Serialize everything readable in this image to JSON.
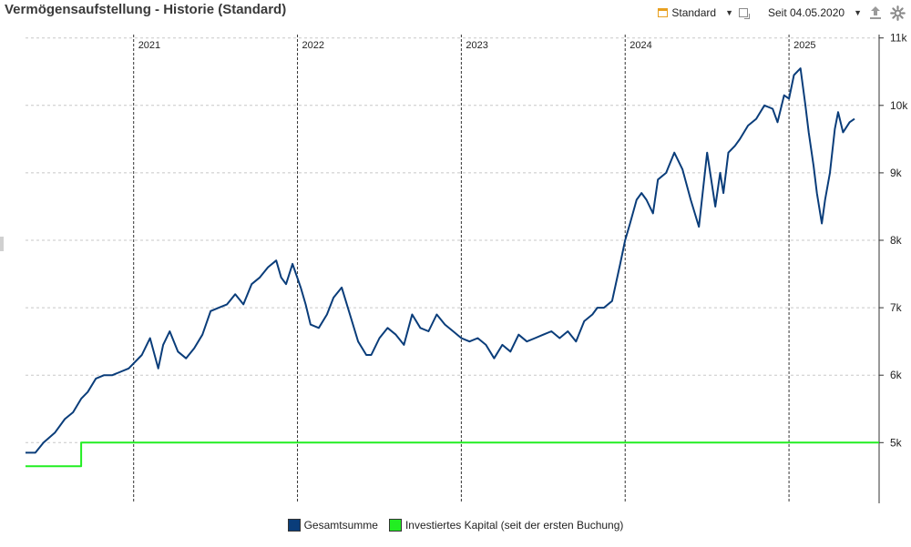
{
  "header": {
    "title": "Vermögensaufstellung - Historie (Standard)",
    "standard_label": "Standard",
    "range_label": "Seit 04.05.2020",
    "calendar_icon": "calendar-icon",
    "range_icon": "date-range-icon",
    "export_icon": "export-icon",
    "settings_icon": "gear-icon"
  },
  "legend": {
    "items": [
      {
        "label": "Gesamtsumme",
        "color": "#0a3d7a"
      },
      {
        "label": "Investiertes Kapital (seit der ersten Buchung)",
        "color": "#22ee22"
      }
    ]
  },
  "chart_data": {
    "type": "line",
    "title": "Vermögensaufstellung - Historie (Standard)",
    "xlim": [
      2020.34,
      2025.55
    ],
    "ylim": [
      4100,
      11050
    ],
    "y_ticks": [
      5000,
      6000,
      7000,
      8000,
      9000,
      10000,
      11000
    ],
    "y_tick_labels": [
      "5k",
      "6k",
      "7k",
      "8k",
      "9k",
      "10k",
      "11k"
    ],
    "x_year_markers": [
      {
        "x": 2021.0,
        "label": "2021"
      },
      {
        "x": 2022.0,
        "label": "2022"
      },
      {
        "x": 2023.0,
        "label": "2023"
      },
      {
        "x": 2024.0,
        "label": "2024"
      },
      {
        "x": 2025.0,
        "label": "2025"
      }
    ],
    "grid": true,
    "legend_position": "bottom-center",
    "series": [
      {
        "name": "Gesamtsumme",
        "color": "#0a3d7a",
        "x": [
          2020.34,
          2020.4,
          2020.45,
          2020.52,
          2020.58,
          2020.63,
          2020.68,
          2020.72,
          2020.77,
          2020.82,
          2020.87,
          2020.92,
          2020.97,
          2021.05,
          2021.1,
          2021.15,
          2021.18,
          2021.22,
          2021.27,
          2021.32,
          2021.37,
          2021.42,
          2021.47,
          2021.52,
          2021.57,
          2021.62,
          2021.67,
          2021.72,
          2021.77,
          2021.82,
          2021.87,
          2021.9,
          2021.93,
          2021.97,
          2022.02,
          2022.05,
          2022.08,
          2022.13,
          2022.18,
          2022.22,
          2022.27,
          2022.32,
          2022.37,
          2022.42,
          2022.45,
          2022.5,
          2022.55,
          2022.6,
          2022.65,
          2022.7,
          2022.75,
          2022.8,
          2022.85,
          2022.9,
          2022.95,
          2023.0,
          2023.05,
          2023.1,
          2023.15,
          2023.2,
          2023.25,
          2023.3,
          2023.35,
          2023.4,
          2023.45,
          2023.5,
          2023.55,
          2023.6,
          2023.65,
          2023.7,
          2023.75,
          2023.8,
          2023.83,
          2023.87,
          2023.92,
          2023.97,
          2024.0,
          2024.03,
          2024.07,
          2024.1,
          2024.13,
          2024.17,
          2024.2,
          2024.25,
          2024.3,
          2024.35,
          2024.4,
          2024.45,
          2024.5,
          2024.55,
          2024.58,
          2024.6,
          2024.63,
          2024.67,
          2024.7,
          2024.75,
          2024.8,
          2024.85,
          2024.9,
          2024.93,
          2024.97,
          2025.0,
          2025.03,
          2025.07,
          2025.1,
          2025.12,
          2025.15,
          2025.17,
          2025.2,
          2025.22,
          2025.25,
          2025.28,
          2025.3,
          2025.33,
          2025.37,
          2025.4,
          2025.45,
          2025.5,
          2025.55
        ],
        "values": [
          4850,
          4850,
          5000,
          5150,
          5350,
          5450,
          5650,
          5750,
          5950,
          6000,
          6000,
          6050,
          6100,
          6300,
          6550,
          6100,
          6450,
          6650,
          6350,
          6250,
          6400,
          6600,
          6950,
          7000,
          7050,
          7200,
          7050,
          7350,
          7450,
          7600,
          7700,
          7450,
          7350,
          7650,
          7300,
          7050,
          6750,
          6700,
          6900,
          7150,
          7300,
          6900,
          6500,
          6300,
          6300,
          6550,
          6700,
          6600,
          6450,
          6900,
          6700,
          6650,
          6900,
          6750,
          6650,
          6550,
          6500,
          6550,
          6450,
          6250,
          6450,
          6350,
          6600,
          6500,
          6550,
          6600,
          6650,
          6550,
          6650,
          6500,
          6800,
          6900,
          7000,
          7000,
          7100,
          7650,
          8000,
          8250,
          8600,
          8700,
          8600,
          8400,
          8900,
          9000,
          9300,
          9050,
          8600,
          8200,
          9300,
          8500,
          9000,
          8700,
          9300,
          9400,
          9500,
          9700,
          9800,
          10000,
          9950,
          9750,
          10150,
          10100,
          10450,
          10550,
          10000,
          9600,
          9100,
          8700,
          8250,
          8600,
          9000,
          9650,
          9900,
          9600,
          9750,
          9800,
          null,
          null,
          null
        ]
      },
      {
        "name": "Investiertes Kapital (seit der ersten Buchung)",
        "color": "#22ee22",
        "step": true,
        "x": [
          2020.34,
          2020.68,
          2020.68,
          2025.55
        ],
        "values": [
          4650,
          4650,
          5000,
          5000
        ]
      }
    ]
  }
}
